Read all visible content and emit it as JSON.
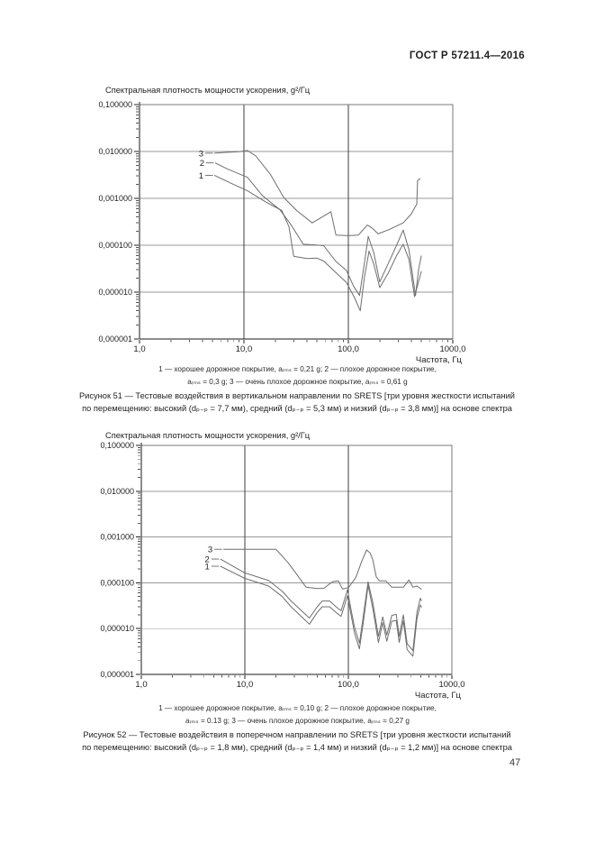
{
  "page": {
    "header": "ГОСТ Р 57211.4—2016",
    "number": "47"
  },
  "chart_data": [
    {
      "type": "line",
      "title": "Спектральная плотность мощности ускорения, g²/Гц",
      "xlabel": "Частота, Гц",
      "ylabel": "",
      "xscale": "log",
      "yscale": "log",
      "xlim": [
        1,
        1000
      ],
      "ylim": [
        1e-06,
        0.1
      ],
      "grid": true,
      "x_ticks": [
        1,
        10,
        100,
        1000
      ],
      "x_tick_labels": [
        "1,0",
        "10,0",
        "100,0",
        "1000,0"
      ],
      "y_ticks": [
        0.1,
        0.01,
        0.001,
        0.0001,
        1e-05,
        1e-06
      ],
      "y_tick_labels": [
        "0,100000",
        "0,010000",
        "0,001000",
        "0,000100",
        "0,000010",
        "0,000001"
      ],
      "legend_lines": [
        "1 — хорошее дорожное покрытие, aᵣₘₛ = 0,21 g; 2 — плохое дорожное покрытие,",
        "aᵣₘₛ = 0,3 g; 3 — очень плохое дорожное покрытие, aᵣₘₛ = 0,61 g"
      ],
      "caption_lines": [
        "Рисунок 51 — Тестовые воздействия в вертикальном направлении по SRETS [три уровня жесткости испытаний",
        "по перемещению: высокий (dₚ₋ₚ = 7,7 мм), средний (dₚ₋ₚ = 5,3 мм) и низкий (dₚ₋ₚ = 3,8 мм)] на основе спектра"
      ],
      "series": [
        {
          "name": "1",
          "road_surface": "хорошее дорожное покрытие",
          "a_rms": "0,21 g",
          "points": [
            [
              5.2,
              0.0031
            ],
            [
              7.5,
              0.0021
            ],
            [
              10.8,
              0.00145
            ],
            [
              16,
              0.00085
            ],
            [
              23,
              0.00055
            ],
            [
              27,
              0.00025
            ],
            [
              30,
              5.8e-05
            ],
            [
              40,
              5.2e-05
            ],
            [
              50,
              5.3e-05
            ],
            [
              58,
              4.6e-05
            ],
            [
              76,
              2.6e-05
            ],
            [
              96,
              1.6e-05
            ],
            [
              115,
              7.5e-06
            ],
            [
              130,
              4e-06
            ],
            [
              142,
              2e-05
            ],
            [
              158,
              7.5e-05
            ],
            [
              175,
              4e-05
            ],
            [
              200,
              1.25e-05
            ],
            [
              240,
              2.5e-05
            ],
            [
              290,
              6e-05
            ],
            [
              335,
              0.000105
            ],
            [
              380,
              5e-05
            ],
            [
              430,
              8e-06
            ],
            [
              465,
              1.5e-05
            ],
            [
              500,
              2.8e-05
            ]
          ]
        },
        {
          "name": "2",
          "road_surface": "плохое дорожное покрытие",
          "a_rms": "0,3 g",
          "points": [
            [
              5.3,
              0.0057
            ],
            [
              7,
              0.0042
            ],
            [
              10.8,
              0.0028
            ],
            [
              15,
              0.00115
            ],
            [
              19,
              0.00075
            ],
            [
              22,
              0.00058
            ],
            [
              28,
              0.00028
            ],
            [
              37,
              0.000105
            ],
            [
              48,
              0.000102
            ],
            [
              58,
              9.8e-05
            ],
            [
              76,
              4.5e-05
            ],
            [
              96,
              2.9e-05
            ],
            [
              112,
              1.35e-05
            ],
            [
              128,
              8.5e-06
            ],
            [
              142,
              4e-05
            ],
            [
              155,
              0.000155
            ],
            [
              175,
              7e-05
            ],
            [
              200,
              1.65e-05
            ],
            [
              240,
              4e-05
            ],
            [
              290,
              0.0001
            ],
            [
              335,
              0.00021
            ],
            [
              380,
              8e-05
            ],
            [
              440,
              8.5e-06
            ],
            [
              470,
              3e-05
            ],
            [
              500,
              6e-05
            ]
          ]
        },
        {
          "name": "3",
          "road_surface": "очень плохое дорожное покрытие",
          "a_rms": "0,61 g",
          "points": [
            [
              5.2,
              0.0092
            ],
            [
              7,
              0.0096
            ],
            [
              9,
              0.0099
            ],
            [
              10.8,
              0.0105
            ],
            [
              13,
              0.008
            ],
            [
              18,
              0.0032
            ],
            [
              24,
              0.00105
            ],
            [
              32,
              0.00055
            ],
            [
              45,
              0.0003
            ],
            [
              55,
              0.00039
            ],
            [
              68,
              0.00052
            ],
            [
              76,
              0.000165
            ],
            [
              100,
              0.00016
            ],
            [
              125,
              0.000165
            ],
            [
              152,
              0.00027
            ],
            [
              170,
              0.00023
            ],
            [
              193,
              0.000175
            ],
            [
              250,
              0.00022
            ],
            [
              335,
              0.0003
            ],
            [
              400,
              0.00046
            ],
            [
              435,
              0.00065
            ],
            [
              452,
              0.00075
            ],
            [
              460,
              0.0024
            ],
            [
              490,
              0.00265
            ]
          ]
        }
      ]
    },
    {
      "type": "line",
      "title": "Спектральная плотность мощности ускорения, g²/Гц",
      "xlabel": "Частота, Гц",
      "ylabel": "",
      "xscale": "log",
      "yscale": "log",
      "xlim": [
        1,
        1000
      ],
      "ylim": [
        1e-06,
        0.1
      ],
      "grid": true,
      "x_ticks": [
        1,
        10,
        100,
        1000
      ],
      "x_tick_labels": [
        "1,0",
        "10,0",
        "100,0",
        "1000,0"
      ],
      "y_ticks": [
        0.1,
        0.01,
        0.001,
        0.0001,
        1e-05,
        1e-06
      ],
      "y_tick_labels": [
        "0,100000",
        "0,010000",
        "0,001000",
        "0,000100",
        "0,000010",
        "0,000001"
      ],
      "legend_lines": [
        "1 — хорошее дорожное покрытие, aᵣₘₛ = 0,10 g; 2 — плохое дорожное покрытие,",
        "aᵣₘₛ = 0.13 g; 3 — очень плохое дорожное покрытие, aᵣₘₛ = 0,27 g"
      ],
      "caption_lines": [
        "Рисунок 52 — Тестовые воздействия в поперечном направлении по SRETS [три уровня жесткости испытаний",
        "по перемещению: высокий (dₚ₋ₚ = 1,8 мм), средний (dₚ₋ₚ = 1,4 мм) и низкий (dₚ₋ₚ = 1,2 мм)] на основе спектра"
      ],
      "series": [
        {
          "name": "1",
          "road_surface": "хорошее дорожное покрытие",
          "a_rms": "0,10 g",
          "points": [
            [
              5.8,
              0.00023
            ],
            [
              10,
              0.000125
            ],
            [
              17,
              8.5e-05
            ],
            [
              23,
              5e-05
            ],
            [
              28,
              3e-05
            ],
            [
              35,
              1.85e-05
            ],
            [
              42,
              1.25e-05
            ],
            [
              50,
              2.25e-05
            ],
            [
              56,
              3e-05
            ],
            [
              66,
              3e-05
            ],
            [
              76,
              2.25e-05
            ],
            [
              85,
              1.85e-05
            ],
            [
              98,
              5.2e-05
            ],
            [
              107,
              1.8e-05
            ],
            [
              115,
              7.8e-06
            ],
            [
              128,
              3.6e-06
            ],
            [
              140,
              1.45e-05
            ],
            [
              155,
              8.8e-05
            ],
            [
              172,
              2.8e-05
            ],
            [
              195,
              5e-06
            ],
            [
              215,
              1.35e-05
            ],
            [
              235,
              5.3e-06
            ],
            [
              263,
              1.45e-05
            ],
            [
              290,
              1.5e-05
            ],
            [
              310,
              5e-06
            ],
            [
              340,
              1.48e-05
            ],
            [
              370,
              3.5e-06
            ],
            [
              420,
              2.5e-06
            ],
            [
              460,
              1.65e-05
            ],
            [
              495,
              3.3e-05
            ],
            [
              510,
              2.9e-05
            ]
          ]
        },
        {
          "name": "2",
          "road_surface": "плохое дорожное покрытие",
          "a_rms": "0.13 g",
          "points": [
            [
              5.8,
              0.00033
            ],
            [
              10,
              0.000165
            ],
            [
              17,
              0.000112
            ],
            [
              23,
              6.5e-05
            ],
            [
              28,
              4e-05
            ],
            [
              35,
              2.5e-05
            ],
            [
              42,
              1.7e-05
            ],
            [
              50,
              3e-05
            ],
            [
              56,
              4e-05
            ],
            [
              66,
              4e-05
            ],
            [
              76,
              3e-05
            ],
            [
              85,
              2.45e-05
            ],
            [
              98,
              7e-05
            ],
            [
              107,
              2.35e-05
            ],
            [
              115,
              1.05e-05
            ],
            [
              128,
              4.8e-06
            ],
            [
              140,
              2e-05
            ],
            [
              155,
              0.000105
            ],
            [
              172,
              3.75e-05
            ],
            [
              195,
              6.8e-06
            ],
            [
              215,
              1.8e-05
            ],
            [
              235,
              7.2e-06
            ],
            [
              263,
              1.95e-05
            ],
            [
              290,
              2.05e-05
            ],
            [
              310,
              6.8e-06
            ],
            [
              340,
              2e-05
            ],
            [
              370,
              4.7e-06
            ],
            [
              420,
              3.3e-06
            ],
            [
              460,
              2.25e-05
            ],
            [
              495,
              4.6e-05
            ],
            [
              510,
              4e-05
            ]
          ]
        },
        {
          "name": "3",
          "road_surface": "очень плохое дорожное покрытие",
          "a_rms": "0,27 g",
          "points": [
            [
              6.2,
              0.00054
            ],
            [
              10,
              0.00054
            ],
            [
              20,
              0.00054
            ],
            [
              26,
              0.00028
            ],
            [
              31,
              0.000165
            ],
            [
              39,
              8e-05
            ],
            [
              50,
              7.5e-05
            ],
            [
              58,
              7.6e-05
            ],
            [
              70,
              0.000105
            ],
            [
              80,
              0.00011
            ],
            [
              88,
              7.3e-05
            ],
            [
              100,
              7.8e-05
            ],
            [
              118,
              0.00013
            ],
            [
              135,
              0.0003
            ],
            [
              150,
              0.00052
            ],
            [
              162,
              0.00045
            ],
            [
              172,
              0.00032
            ],
            [
              186,
              0.000135
            ],
            [
              200,
              0.00011
            ],
            [
              230,
              0.00011
            ],
            [
              263,
              8e-05
            ],
            [
              340,
              8e-05
            ],
            [
              385,
              0.000115
            ],
            [
              420,
              8e-05
            ],
            [
              460,
              8.5e-05
            ],
            [
              510,
              7.2e-05
            ]
          ]
        }
      ]
    }
  ]
}
